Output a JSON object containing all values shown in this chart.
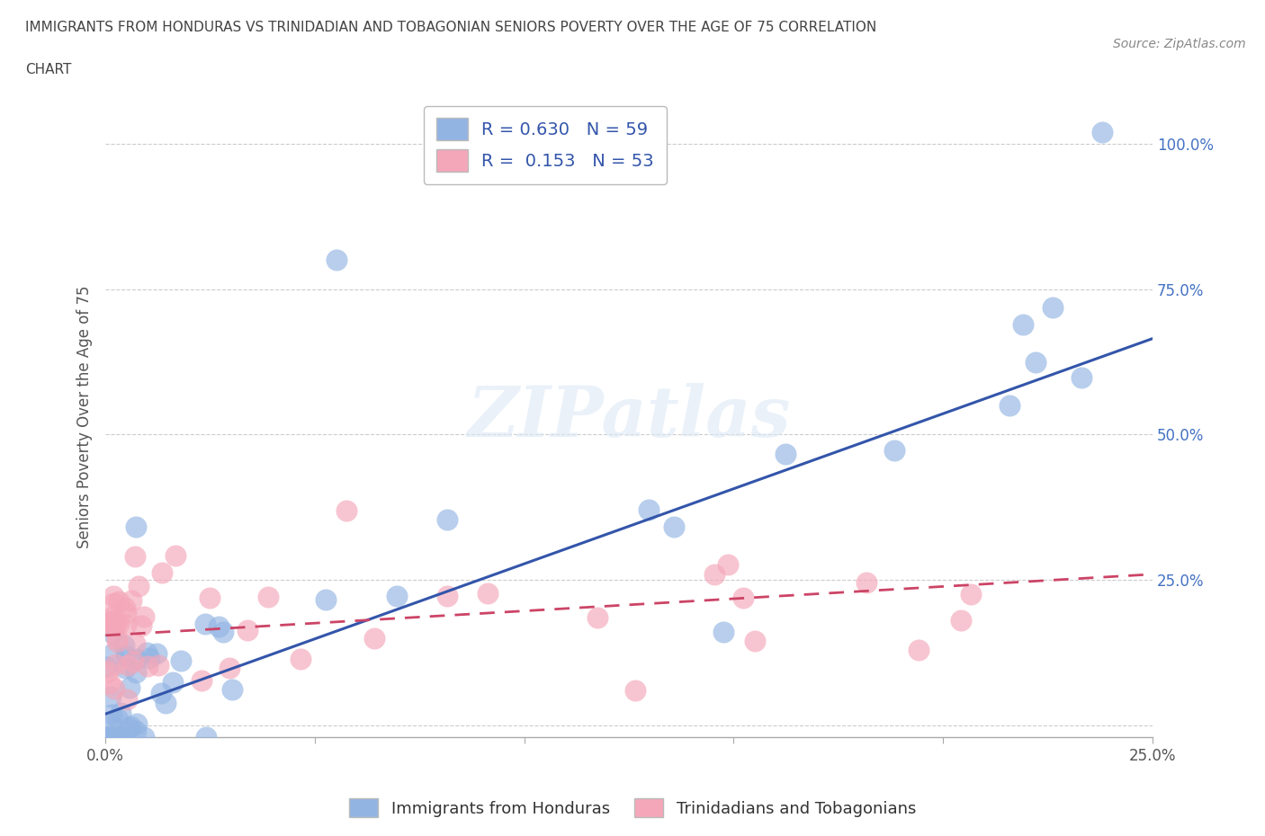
{
  "title_line1": "IMMIGRANTS FROM HONDURAS VS TRINIDADIAN AND TOBAGONIAN SENIORS POVERTY OVER THE AGE OF 75 CORRELATION",
  "title_line2": "CHART",
  "source": "Source: ZipAtlas.com",
  "ylabel": "Seniors Poverty Over the Age of 75",
  "xlim": [
    0.0,
    0.25
  ],
  "ylim": [
    -0.02,
    1.08
  ],
  "R_blue": 0.63,
  "N_blue": 59,
  "R_pink": 0.153,
  "N_pink": 53,
  "blue_color": "#92b4e3",
  "pink_color": "#f4a7b9",
  "blue_line_color": "#3355aa",
  "pink_line_color": "#cc4466",
  "legend_blue_label": "Immigrants from Honduras",
  "legend_pink_label": "Trinidadians and Tobagonians",
  "watermark": "ZIPatlas",
  "blue_slope": 2.58,
  "blue_intercept": 0.02,
  "pink_slope": 0.42,
  "pink_intercept": 0.155,
  "title_fontsize": 11,
  "axis_label_fontsize": 12,
  "tick_fontsize": 12,
  "legend_fontsize": 13
}
